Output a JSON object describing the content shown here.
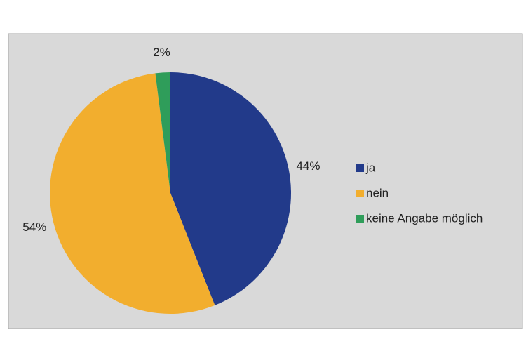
{
  "chart_data": {
    "type": "pie",
    "categories": [
      "ja",
      "nein",
      "keine Angabe möglich"
    ],
    "values": [
      44,
      54,
      2
    ],
    "value_labels": [
      "44%",
      "54%",
      "2%"
    ],
    "colors": [
      "#223a8a",
      "#f2ae2e",
      "#2f9d5a"
    ],
    "legend": "right"
  }
}
